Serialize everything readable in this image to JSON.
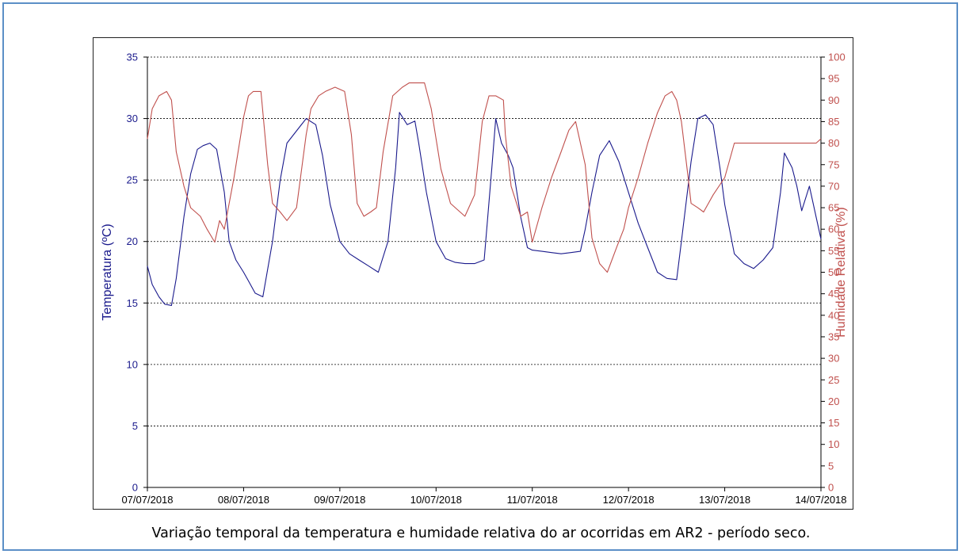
{
  "caption": "Variação temporal da temperatura e humidade relativa do ar ocorridas em AR2 - período seco.",
  "chart_data": {
    "type": "line",
    "title": "",
    "xlabel": "",
    "ylabel": "Temperatura (ºC)",
    "y2label": "Humidade Relativa (%)",
    "xlim": [
      "07/07/2018",
      "14/07/2018"
    ],
    "x_tick_labels": [
      "07/07/2018",
      "08/07/2018",
      "09/07/2018",
      "10/07/2018",
      "11/07/2018",
      "12/07/2018",
      "13/07/2018",
      "14/07/2018"
    ],
    "ylim": [
      0,
      35
    ],
    "y_ticks": [
      "0",
      "5",
      "10",
      "15",
      "20",
      "25",
      "30",
      "35"
    ],
    "y2lim": [
      0,
      100
    ],
    "y2_ticks": [
      "0",
      "5",
      "10",
      "15",
      "20",
      "25",
      "30",
      "35",
      "40",
      "45",
      "50",
      "55",
      "60",
      "65",
      "70",
      "75",
      "80",
      "85",
      "90",
      "95",
      "100"
    ],
    "grid": "horizontal dashed",
    "series": [
      {
        "axis": "left",
        "color": "#1a1a8c",
        "x_days": [
          0.0,
          0.05,
          0.12,
          0.18,
          0.25,
          0.3,
          0.38,
          0.45,
          0.52,
          0.58,
          0.65,
          0.72,
          0.8,
          0.85,
          0.92,
          1.0,
          1.05,
          1.12,
          1.2,
          1.3,
          1.38,
          1.45,
          1.55,
          1.65,
          1.75,
          1.82,
          1.9,
          2.0,
          2.1,
          2.2,
          2.3,
          2.4,
          2.5,
          2.58,
          2.62,
          2.7,
          2.78,
          2.82,
          2.9,
          3.0,
          3.1,
          3.2,
          3.3,
          3.4,
          3.5,
          3.58,
          3.62,
          3.68,
          3.75,
          3.8,
          3.88,
          3.95,
          4.0,
          4.1,
          4.2,
          4.3,
          4.4,
          4.5,
          4.55,
          4.62,
          4.7,
          4.8,
          4.9,
          5.0,
          5.1,
          5.2,
          5.3,
          5.4,
          5.5,
          5.55,
          5.65,
          5.72,
          5.8,
          5.88,
          5.95,
          6.0,
          6.1,
          6.2,
          6.3,
          6.4,
          6.5,
          6.58,
          6.62,
          6.7,
          6.75,
          6.8,
          6.88,
          6.95,
          7.0
        ],
        "y": [
          18.0,
          16.5,
          15.5,
          14.9,
          14.8,
          17.0,
          22.0,
          25.5,
          27.5,
          27.8,
          28.0,
          27.5,
          24.0,
          20.0,
          18.5,
          17.5,
          16.8,
          15.8,
          15.5,
          20.0,
          25.0,
          28.0,
          29.0,
          30.0,
          29.5,
          27.0,
          23.0,
          20.0,
          19.0,
          18.5,
          18.0,
          17.5,
          20.0,
          26.0,
          30.5,
          29.5,
          29.8,
          28.0,
          24.0,
          20.0,
          18.6,
          18.3,
          18.2,
          18.2,
          18.5,
          26.0,
          30.0,
          28.0,
          27.0,
          26.0,
          22.0,
          19.5,
          19.3,
          19.2,
          19.1,
          19.0,
          19.1,
          19.2,
          21.0,
          24.0,
          27.0,
          28.2,
          26.5,
          24.0,
          21.5,
          19.5,
          17.5,
          17.0,
          16.9,
          20.0,
          26.5,
          30.0,
          30.3,
          29.5,
          26.0,
          23.0,
          19.0,
          18.2,
          17.8,
          18.5,
          19.5,
          24.0,
          27.2,
          26.0,
          24.5,
          22.5,
          24.5,
          22.0,
          20.2
        ]
      },
      {
        "axis": "right",
        "color": "#c0504d",
        "x_days": [
          0.0,
          0.05,
          0.12,
          0.2,
          0.25,
          0.3,
          0.38,
          0.45,
          0.55,
          0.62,
          0.7,
          0.75,
          0.8,
          0.9,
          1.0,
          1.05,
          1.1,
          1.18,
          1.25,
          1.3,
          1.38,
          1.45,
          1.55,
          1.65,
          1.7,
          1.78,
          1.85,
          1.95,
          2.05,
          2.12,
          2.18,
          2.25,
          2.32,
          2.38,
          2.45,
          2.55,
          2.65,
          2.72,
          2.8,
          2.88,
          2.95,
          3.05,
          3.15,
          3.2,
          3.3,
          3.4,
          3.48,
          3.55,
          3.62,
          3.7,
          3.72,
          3.78,
          3.88,
          3.95,
          4.0,
          4.1,
          4.2,
          4.3,
          4.38,
          4.45,
          4.55,
          4.62,
          4.7,
          4.78,
          4.88,
          4.95,
          5.0,
          5.1,
          5.2,
          5.3,
          5.38,
          5.45,
          5.5,
          5.55,
          5.62,
          5.65,
          5.72,
          5.78,
          5.88,
          6.0,
          6.1,
          6.2,
          6.3,
          6.4,
          6.5,
          6.55,
          6.62,
          6.7,
          6.75,
          6.8,
          6.88,
          6.95,
          7.0
        ],
        "y": [
          81,
          88,
          91,
          92,
          90,
          78,
          70,
          65,
          63,
          60,
          57,
          62,
          60,
          72,
          86,
          91,
          92,
          92,
          75,
          66,
          64,
          62,
          65,
          82,
          88,
          91,
          92,
          93,
          92,
          82,
          66,
          63,
          64,
          65,
          78,
          91,
          93,
          94,
          94,
          94,
          88,
          74,
          66,
          65,
          63,
          68,
          85,
          91,
          91,
          90,
          82,
          70,
          63,
          64,
          57,
          65,
          72,
          78,
          83,
          85,
          75,
          58,
          52,
          50,
          56,
          60,
          65,
          72,
          80,
          87,
          91,
          92,
          90,
          85,
          72,
          66,
          65,
          64,
          68,
          72,
          80,
          80,
          80,
          80,
          80,
          80,
          80,
          80,
          80,
          80,
          80,
          80,
          81
        ]
      }
    ]
  }
}
